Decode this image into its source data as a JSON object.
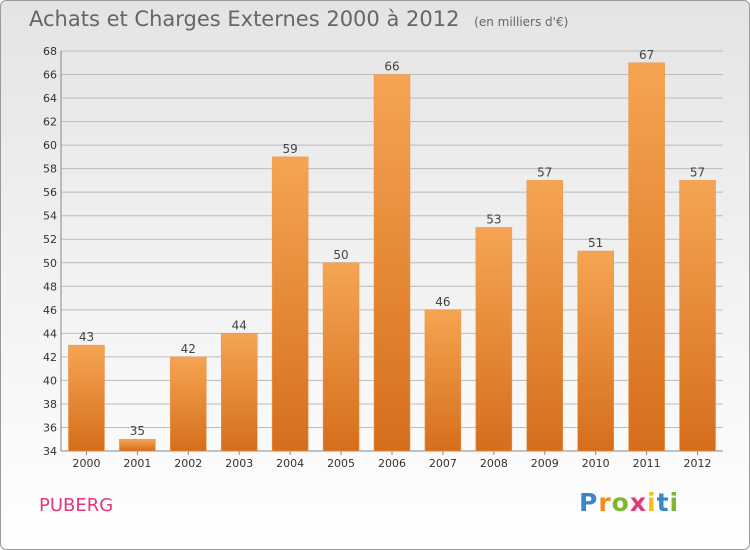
{
  "header": {
    "title": "Achats et Charges Externes 2000 à 2012",
    "subtitle": "(en milliers d'€)"
  },
  "footer": {
    "commune": "PUBERG",
    "logo": {
      "letters": [
        "P",
        "r",
        "o",
        "x",
        "i",
        "t",
        "i"
      ],
      "colors": [
        "#3a86c8",
        "#f28c1c",
        "#7cb82f",
        "#e0397b",
        "#f2c01c",
        "#3a86c8",
        "#7cb82f"
      ]
    }
  },
  "colors": {
    "bar": "#f0913a",
    "bar_light": "#f5a552",
    "bar_dark": "#d66e1c",
    "grid": "#bbbbbb"
  },
  "chart_data": {
    "type": "bar",
    "title": "Achats et Charges Externes 2000 à 2012",
    "subtitle": "(en milliers d'€)",
    "xlabel": "",
    "ylabel": "",
    "categories": [
      "2000",
      "2001",
      "2002",
      "2003",
      "2004",
      "2005",
      "2006",
      "2007",
      "2008",
      "2009",
      "2010",
      "2011",
      "2012"
    ],
    "values": [
      43,
      35,
      42,
      44,
      59,
      50,
      66,
      46,
      53,
      57,
      51,
      67,
      57
    ],
    "ylim": [
      34,
      68
    ],
    "yticks": [
      34,
      36,
      38,
      40,
      42,
      44,
      46,
      48,
      50,
      52,
      54,
      56,
      58,
      60,
      62,
      64,
      66,
      68
    ],
    "grid": true,
    "data_labels": true
  }
}
